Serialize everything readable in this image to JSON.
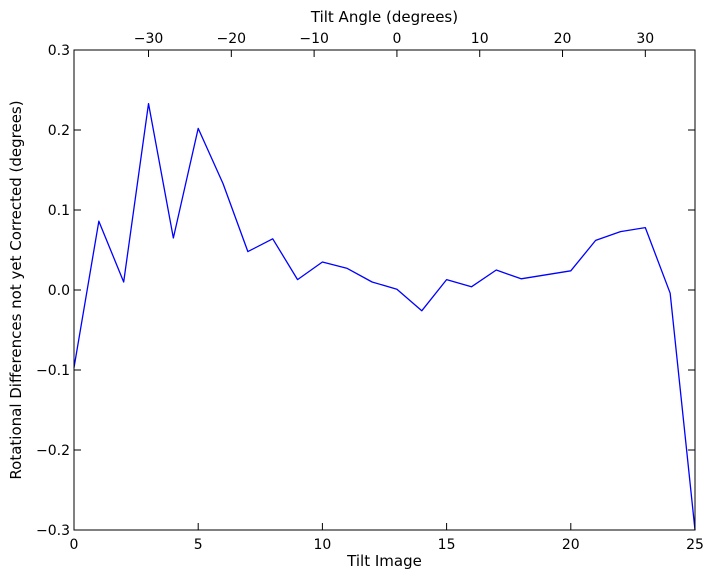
{
  "chart_data": {
    "type": "line",
    "xlabel": "Tilt Image",
    "x2label": "Tilt Angle (degrees)",
    "ylabel": "Rotational Differences not yet Corrected (degrees)",
    "xlim": [
      0,
      25
    ],
    "ylim": [
      -0.3,
      0.3
    ],
    "x2lim": [
      -39,
      36
    ],
    "grid": false,
    "line_color": "#0000ff",
    "x_ticks": [
      0,
      5,
      10,
      15,
      20,
      25
    ],
    "x_tick_labels": [
      "0",
      "5",
      "10",
      "15",
      "20",
      "25"
    ],
    "x2_ticks": [
      -30,
      -20,
      -10,
      0,
      10,
      20,
      30
    ],
    "x2_tick_labels": [
      "−30",
      "−20",
      "−10",
      "0",
      "10",
      "20",
      "30"
    ],
    "y_ticks": [
      -0.3,
      -0.2,
      -0.1,
      0.0,
      0.1,
      0.2,
      0.3
    ],
    "y_tick_labels": [
      "−0.3",
      "−0.2",
      "−0.1",
      "0.0",
      "0.1",
      "0.2",
      "0.3"
    ],
    "series": [
      {
        "x": [
          0,
          1,
          2,
          3,
          4,
          5,
          6,
          7,
          8,
          9,
          10,
          11,
          12,
          13,
          14,
          15,
          16,
          17,
          18,
          19,
          20,
          21,
          22,
          23,
          24,
          25
        ],
        "values": [
          -0.097,
          0.086,
          0.01,
          0.233,
          0.065,
          0.202,
          0.133,
          0.048,
          0.064,
          0.013,
          0.035,
          0.027,
          0.01,
          0.001,
          -0.026,
          0.013,
          0.004,
          0.025,
          0.014,
          0.019,
          0.024,
          0.062,
          0.073,
          0.078,
          -0.004,
          -0.3
        ]
      }
    ]
  }
}
